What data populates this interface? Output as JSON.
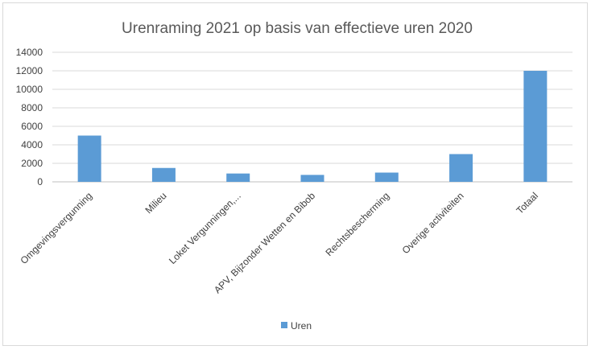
{
  "chart_data": {
    "type": "bar",
    "title": "Urenraming 2021 op basis van effectieve uren 2020",
    "xlabel": "",
    "ylabel": "",
    "categories": [
      "Omgevingsvergunning",
      "Milieu",
      "Loket Vergunningen,...",
      "APV, Bijzonder Wetten en Bibob",
      "Rechtsbescherming",
      "Overige activiteiten",
      "Totaal"
    ],
    "series": [
      {
        "name": "Uren",
        "values": [
          5000,
          1500,
          900,
          750,
          1000,
          3000,
          12000
        ],
        "color": "#5b9bd5"
      }
    ],
    "ylim": [
      0,
      14000
    ],
    "yticks": [
      0,
      2000,
      4000,
      6000,
      8000,
      10000,
      12000,
      14000
    ],
    "grid": true,
    "legend": "bottom"
  }
}
